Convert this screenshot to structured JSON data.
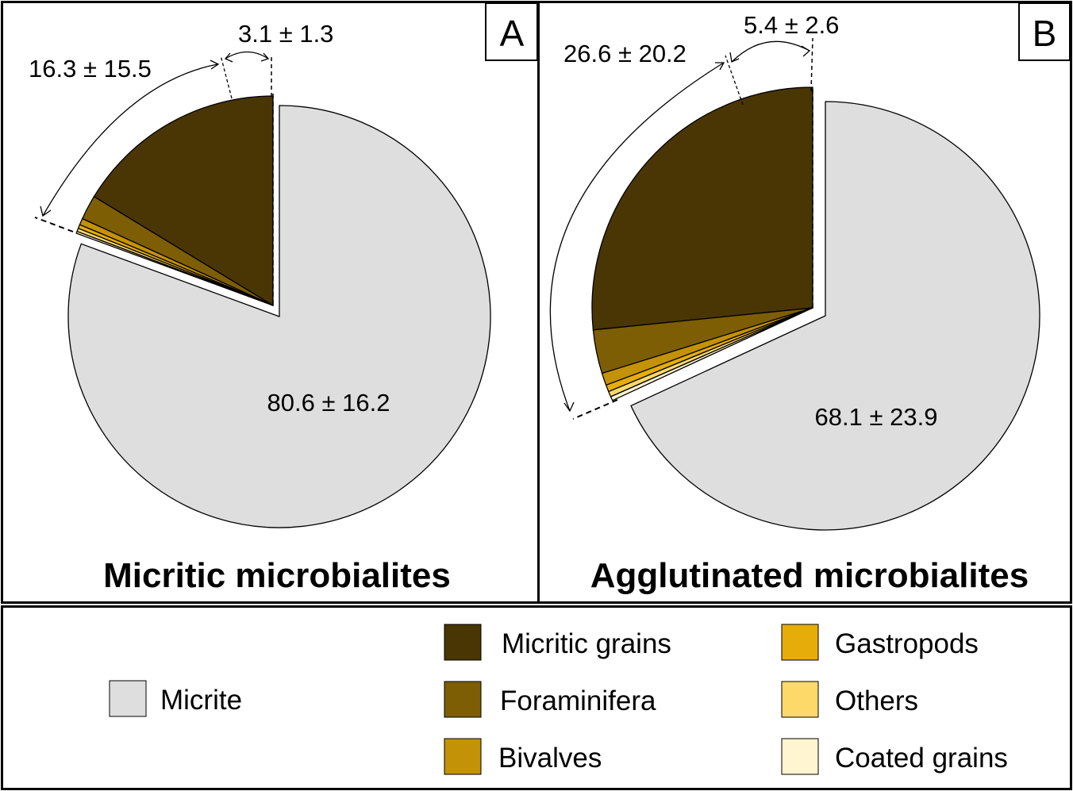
{
  "colors": {
    "micrite": "#dedede",
    "micritic_grains": "#4a3505",
    "foraminifera": "#7d5e04",
    "bivalves": "#c49207",
    "gastropods": "#e6ad0a",
    "others": "#fdd96a",
    "coated_grains": "#fff5d0"
  },
  "chart_data": [
    {
      "type": "pie",
      "panel": "A",
      "title": "Micritic microbialites",
      "slices": [
        {
          "name": "Micrite",
          "value": 80.6,
          "color_key": "micrite"
        },
        {
          "name": "Micritic grains",
          "value": 16.3,
          "color_key": "micritic_grains"
        },
        {
          "name": "Foraminifera",
          "value": 1.9,
          "color_key": "foraminifera"
        },
        {
          "name": "Bivalves",
          "value": 0.5,
          "color_key": "bivalves"
        },
        {
          "name": "Gastropods",
          "value": 0.3,
          "color_key": "gastropods"
        },
        {
          "name": "Others",
          "value": 0.25,
          "color_key": "others"
        },
        {
          "name": "Coated grains",
          "value": 0.15,
          "color_key": "coated_grains"
        }
      ],
      "annotations": {
        "main": "80.6 ± 16.2",
        "grains": "16.3 ± 15.5",
        "skeletal": "3.1 ± 1.3"
      }
    },
    {
      "type": "pie",
      "panel": "B",
      "title": "Agglutinated microbialites",
      "slices": [
        {
          "name": "Micrite",
          "value": 68.1,
          "color_key": "micrite"
        },
        {
          "name": "Micritic grains",
          "value": 26.6,
          "color_key": "micritic_grains"
        },
        {
          "name": "Foraminifera",
          "value": 3.2,
          "color_key": "foraminifera"
        },
        {
          "name": "Bivalves",
          "value": 0.9,
          "color_key": "bivalves"
        },
        {
          "name": "Gastropods",
          "value": 0.5,
          "color_key": "gastropods"
        },
        {
          "name": "Others",
          "value": 0.4,
          "color_key": "others"
        },
        {
          "name": "Coated grains",
          "value": 0.3,
          "color_key": "coated_grains"
        }
      ],
      "annotations": {
        "main": "68.1 ± 23.9",
        "grains": "26.6 ± 20.2",
        "skeletal": "5.4 ± 2.6"
      }
    }
  ],
  "legend": [
    {
      "label": "Micrite",
      "color_key": "micrite"
    },
    {
      "label": "Micritic grains",
      "color_key": "micritic_grains"
    },
    {
      "label": "Foraminifera",
      "color_key": "foraminifera"
    },
    {
      "label": "Bivalves",
      "color_key": "bivalves"
    },
    {
      "label": "Gastropods",
      "color_key": "gastropods"
    },
    {
      "label": "Others",
      "color_key": "others"
    },
    {
      "label": "Coated grains",
      "color_key": "coated_grains"
    }
  ]
}
